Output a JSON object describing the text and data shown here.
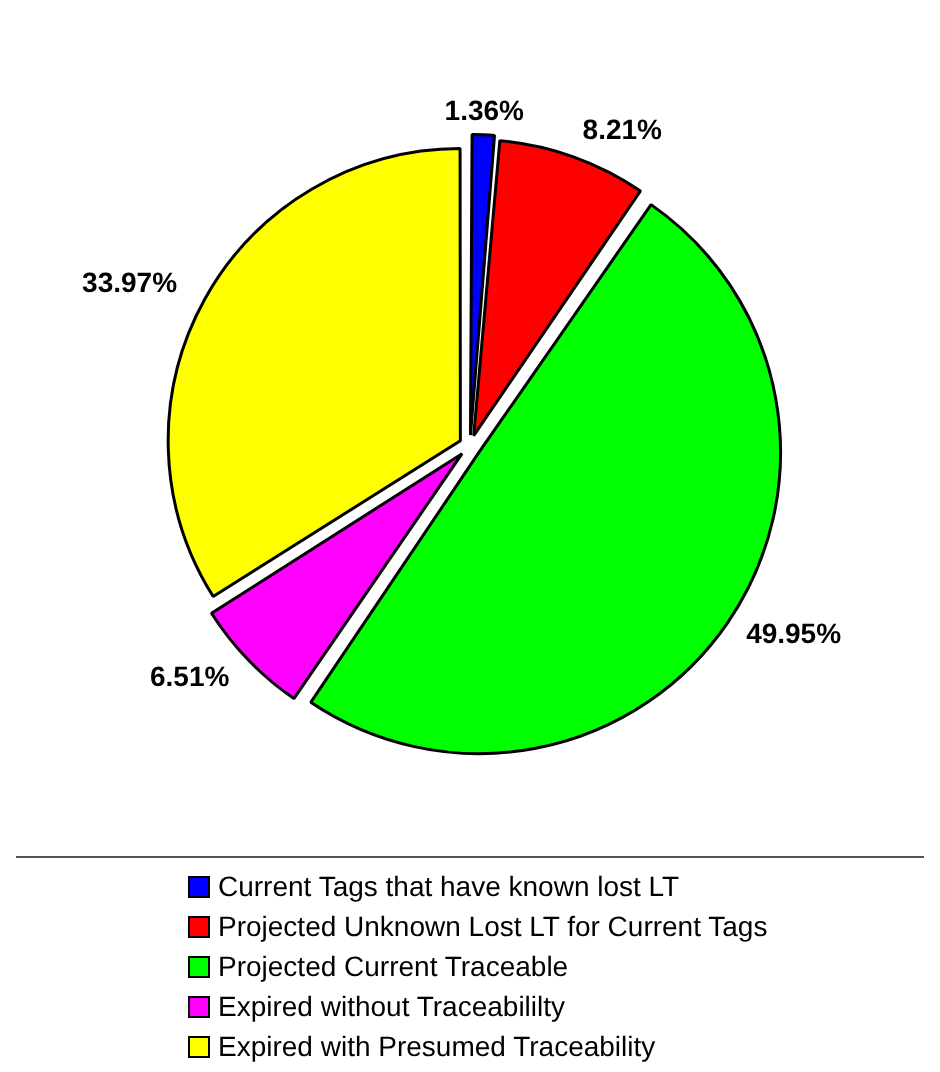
{
  "chart_data": {
    "type": "pie",
    "categories": [
      "Current Tags that have known lost LT",
      "Projected Unknown Lost LT for Current Tags",
      "Projected Current Traceable",
      "Expired without Traceabililty",
      "Expired with Presumed Traceability"
    ],
    "values": [
      1.36,
      8.21,
      49.95,
      6.51,
      33.97
    ],
    "colors": [
      "#0000ff",
      "#ff0000",
      "#00ff00",
      "#ff00ff",
      "#ffff00"
    ],
    "value_labels": [
      "1.36%",
      "8.21%",
      "49.95%",
      "6.51%",
      "33.97%"
    ],
    "legend": "bottom"
  }
}
